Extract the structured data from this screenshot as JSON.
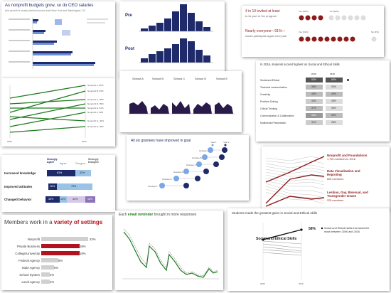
{
  "colors": {
    "navy": "#1f2a6b",
    "dark_blue": "#243a8c",
    "maroon": "#8c1a1a",
    "crimson": "#b0151f",
    "green": "#1d7a1d",
    "grey": "#9a9a9a",
    "light_grey": "#d8d8d8",
    "purple": "#2a1a4a",
    "teal": "#3b8bbb"
  },
  "card1": {
    "title": "As nonprofit budgets grow, so do CEO salaries",
    "subtitle": "And growth is nearly identical across both New York and Washington, DC"
  },
  "card2": {
    "label_pre": "Pre",
    "label_post": "Post"
  },
  "card3": {
    "line1": "4 in 10 invited at least",
    "line2": "to be part of the program",
    "line3": "Nearly everyone—91%—",
    "line4": "would participate again next year",
    "legend": [
      "Yes (40%)",
      "No (60%)",
      "Yes (91%)",
      "No (9%)"
    ]
  },
  "card4": {
    "labels": [
      "Nonprofit A, 80%",
      "Nonprofit B, 65%",
      "Nonprofit C, 58%",
      "Nonprofit D, 55%",
      "Nonprofit E, 52%",
      "Nonprofit F, 48%",
      "Nonprofit G, 40%",
      "Nonprofit H, 38%"
    ],
    "x_labels": [
      "2006",
      "2016"
    ]
  },
  "card5": {
    "schools": [
      "School A",
      "School B",
      "School C",
      "School D",
      "School E"
    ]
  },
  "card6": {
    "title": "In 2016, students scored highest on Social and Ethical Skills",
    "year_a": "2016",
    "year_b": "2018",
    "rows": [
      "Social and Ethical",
      "Technical communication",
      "Creativity",
      "Problem Solving",
      "Critical Thinking",
      "Communication & Collaboration",
      "Multimedia Presentation"
    ],
    "values_a": [
      "52%",
      "38%",
      "40%",
      "33%",
      "37%",
      "44%",
      "31%"
    ],
    "values_b": [
      "60%",
      "32%",
      "40%",
      "28%",
      "30%",
      "35%",
      "28%"
    ]
  },
  "card7": {
    "header_agree": "Strongly Agree",
    "header_mid": "Agree",
    "header_dis": "Disagree",
    "header_sdis": "Strongly Disagree",
    "rows": [
      "Increased knowledge",
      "Improved attitudes",
      "Changed behavior"
    ],
    "r1": [
      "63%",
      "32%"
    ],
    "r2": [
      "16%",
      "79%"
    ],
    "r3": [
      "30%",
      "12%",
      "41%",
      "18%"
    ]
  },
  "card8": {
    "title": "All six grantees have improved in goal",
    "legend": [
      "Year 1",
      "Year 2"
    ],
    "grantees": [
      "Grantee A",
      "Grantee B",
      "Grantee C",
      "Grantee D",
      "Grantee E",
      "Grantee F"
    ],
    "dots_y1": [
      "50",
      "45",
      "42",
      "40",
      "35",
      "20"
    ],
    "dots_y2": [
      "73",
      "69",
      "60",
      "55",
      "50",
      "41"
    ]
  },
  "card9": {
    "labels": [
      {
        "title": "Nonprofit and Foundations",
        "sub": "1,790 members in 2018"
      },
      {
        "title": "Data Visualization and Reporting",
        "sub": "825 members"
      },
      {
        "title": "Lesbian, Gay, Bisexual, and Transgender Issues",
        "sub": "225 members"
      }
    ]
  },
  "card10": {
    "title_pre": "Members work in a ",
    "title_em": "variety of settings",
    "rows": [
      "Nonprofit",
      "Private Business",
      "College/University",
      "Federal Agency",
      "State Agency",
      "School System",
      "Local Agency"
    ],
    "values": [
      "22%",
      "18%",
      "18%",
      "8%",
      "6%",
      "4%",
      "4%"
    ],
    "bar_values": [
      22,
      18,
      18,
      8,
      6,
      4,
      4
    ]
  },
  "card11": {
    "title_pre": "Each ",
    "title_em": "email reminder",
    "title_post": " brought in more responses"
  },
  "card12": {
    "title": "Students made the greatest gains in Social and Ethical skills",
    "highlight": "Social and Ethical Skills",
    "note": "Social and Ethical skills increased the most between 2006 and 2016",
    "value_end": "58%",
    "x_labels": [
      "2006",
      "2016"
    ]
  }
}
